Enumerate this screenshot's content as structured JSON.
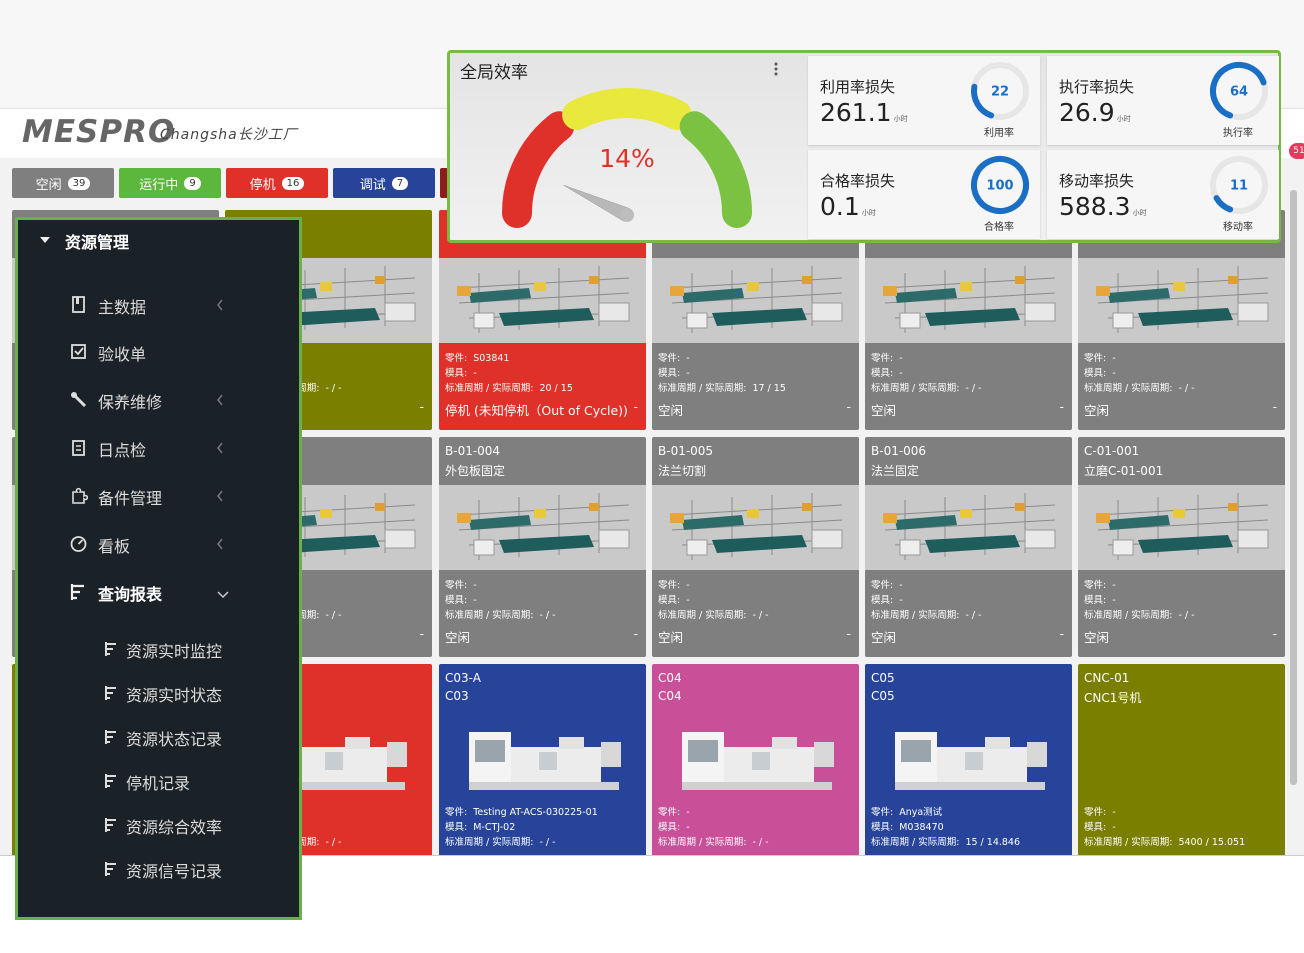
{
  "header": {
    "logo": "MESPRO",
    "site": "Changsha长沙工厂",
    "notification_count": "51"
  },
  "status_buttons": [
    {
      "label": "空闲",
      "count": 39,
      "color": "#7f7f7f"
    },
    {
      "label": "运行中",
      "count": 9,
      "color": "#5cb83c"
    },
    {
      "label": "停机",
      "count": 16,
      "color": "#e0302a"
    },
    {
      "label": "调试",
      "count": 7,
      "color": "#27449a"
    },
    {
      "color": "#8e1c1c"
    }
  ],
  "efficiency_panel": {
    "title": "全局效率",
    "gauge_value": 14,
    "gauge_label": "14%",
    "kpis": [
      {
        "title": "利用率损失",
        "value": 261.1,
        "unit": "小时",
        "ring_value": 22,
        "ring_label": "利用率"
      },
      {
        "title": "执行率损失",
        "value": 26.9,
        "unit": "小时",
        "ring_value": 64,
        "ring_label": "执行率"
      },
      {
        "title": "合格率损失",
        "value": 0.1,
        "unit": "小时",
        "ring_value": 100,
        "ring_label": "合格率"
      },
      {
        "title": "移动率损失",
        "value": 588.3,
        "unit": "小时",
        "ring_value": 11,
        "ring_label": "移动率"
      }
    ]
  },
  "sidebar": {
    "title": "资源管理",
    "items": [
      {
        "label": "主数据",
        "icon": "book",
        "chevron": "left"
      },
      {
        "label": "验收单",
        "icon": "check",
        "chevron": "none"
      },
      {
        "label": "保养维修",
        "icon": "wrench",
        "chevron": "left"
      },
      {
        "label": "日点检",
        "icon": "clipboard",
        "chevron": "left"
      },
      {
        "label": "备件管理",
        "icon": "puzzle",
        "chevron": "left"
      },
      {
        "label": "看板",
        "icon": "dashboard",
        "chevron": "left"
      },
      {
        "label": "查询报表",
        "icon": "report",
        "chevron": "down"
      }
    ],
    "sub_items": [
      "资源实时监控",
      "资源实时状态",
      "资源状态记录",
      "停机记录",
      "资源综合效率",
      "资源信号记录"
    ]
  },
  "card_labels": {
    "part": "零件:",
    "mold": "模具:",
    "cycle": "标准周期 / 实际周期:"
  },
  "cards": [
    {
      "color": "#7f7f7f",
      "image": "line"
    },
    {
      "color": "#7b7f00",
      "image": "line",
      "cycle": "- / -",
      "dash": "-"
    },
    {
      "color": "#e0302a",
      "image": "line",
      "part": "S03841",
      "mold": "-",
      "cycle": "20 / 15",
      "status": "停机 (未知停机（Out of Cycle))",
      "dash": "-"
    },
    {
      "color": "#7f7f7f",
      "image": "line",
      "part": "-",
      "mold": "-",
      "cycle": "17 / 15",
      "status": "空闲",
      "dash": "-"
    },
    {
      "color": "#7f7f7f",
      "image": "line",
      "part": "-",
      "mold": "-",
      "cycle": "- / -",
      "status": "空闲",
      "dash": "-"
    },
    {
      "color": "#7f7f7f",
      "image": "line",
      "part": "-",
      "mold": "-",
      "cycle": "- / -",
      "status": "空闲",
      "dash": "-"
    },
    {
      "color": "#7f7f7f",
      "image": "line"
    },
    {
      "color": "#7f7f7f",
      "image": "line",
      "cycle": "- / -",
      "dash": "-"
    },
    {
      "color": "#7f7f7f",
      "image": "line",
      "code": "B-01-004",
      "name": "外包板固定",
      "part": "-",
      "mold": "-",
      "cycle": "- / -",
      "status": "空闲",
      "dash": "-"
    },
    {
      "color": "#7f7f7f",
      "image": "line",
      "code": "B-01-005",
      "name": "法兰切割",
      "part": "-",
      "mold": "-",
      "cycle": "- / -",
      "status": "空闲",
      "dash": "-"
    },
    {
      "color": "#7f7f7f",
      "image": "line",
      "code": "B-01-006",
      "name": "法兰固定",
      "part": "-",
      "mold": "-",
      "cycle": "- / -",
      "status": "空闲",
      "dash": "-"
    },
    {
      "color": "#7f7f7f",
      "image": "line",
      "code": "C-01-001",
      "name": "立磨C-01-001",
      "part": "-",
      "mold": "-",
      "cycle": "- / -",
      "status": "空闲",
      "dash": "-"
    },
    {
      "color": "#7b7f00",
      "image": "none"
    },
    {
      "color": "#e0302a",
      "image": "machine",
      "cycle": "- / -"
    },
    {
      "color": "#27449a",
      "image": "machine",
      "code": "C03-A",
      "name": "C03",
      "part": "Testing AT-ACS-030225-01",
      "mold": "M-CTJ-02",
      "cycle": "- / -"
    },
    {
      "color": "#c94f98",
      "image": "machine",
      "code": "C04",
      "name": "C04",
      "part": "-",
      "mold": "-",
      "cycle": "- / -"
    },
    {
      "color": "#27449a",
      "image": "machine",
      "code": "C05",
      "name": "C05",
      "part": "Anya测试",
      "mold": "M038470",
      "cycle": "15 / 14.846"
    },
    {
      "color": "#7b7f00",
      "image": "none",
      "code": "CNC-01",
      "name": "CNC1号机",
      "part": "-",
      "mold": "-",
      "cycle": "5400 / 15.051"
    }
  ]
}
